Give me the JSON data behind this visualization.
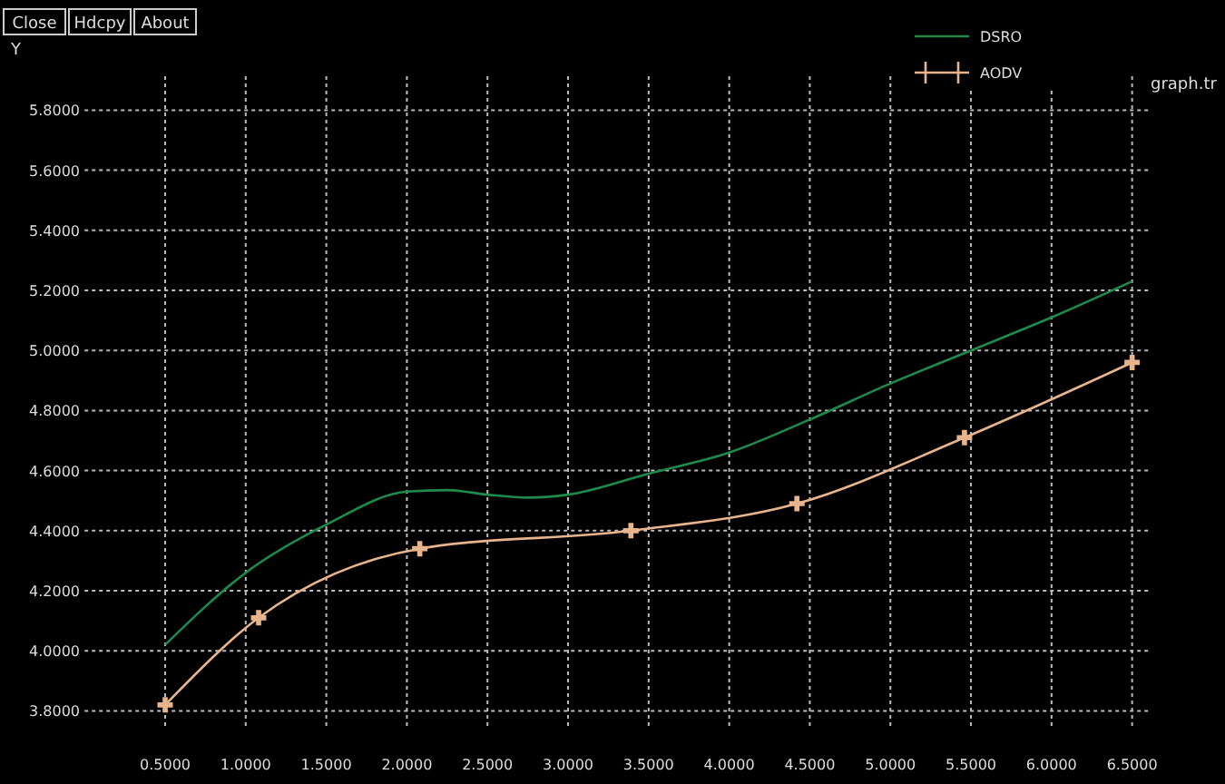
{
  "chart_data": {
    "type": "line",
    "xlabel": "graph.tr",
    "ylabel": "Y",
    "annotations": [
      "Close",
      "Hdcpy",
      "About"
    ],
    "xlim": [
      0,
      6.6
    ],
    "ylim": [
      3.75,
      5.925
    ],
    "xticks": [
      {
        "value": 0.5,
        "label": "0.5000"
      },
      {
        "value": 1,
        "label": "1.0000"
      },
      {
        "value": 1.5,
        "label": "1.5000"
      },
      {
        "value": 2,
        "label": "2.0000"
      },
      {
        "value": 2.5,
        "label": "2.5000"
      },
      {
        "value": 3,
        "label": "3.0000"
      },
      {
        "value": 3.5,
        "label": "3.5000"
      },
      {
        "value": 4,
        "label": "4.0000"
      },
      {
        "value": 4.5,
        "label": "4.5000"
      },
      {
        "value": 5,
        "label": "5.0000"
      },
      {
        "value": 5.5,
        "label": "5.5000"
      },
      {
        "value": 6,
        "label": "6.0000"
      },
      {
        "value": 6.5,
        "label": "6.5000"
      }
    ],
    "yticks": [
      {
        "value": 3.8,
        "label": "3.8000"
      },
      {
        "value": 4,
        "label": "4.0000"
      },
      {
        "value": 4.2,
        "label": "4.2000"
      },
      {
        "value": 4.4,
        "label": "4.4000"
      },
      {
        "value": 4.6,
        "label": "4.6000"
      },
      {
        "value": 4.8,
        "label": "4.8000"
      },
      {
        "value": 5,
        "label": "5.0000"
      },
      {
        "value": 5.2,
        "label": "5.2000"
      },
      {
        "value": 5.4,
        "label": "5.4000"
      },
      {
        "value": 5.6,
        "label": "5.6000"
      },
      {
        "value": 5.8,
        "label": "5.8000"
      }
    ],
    "grid": true,
    "legend": "top right",
    "series": [
      {
        "name": "DSRO",
        "color": "#1e8a4c",
        "marker": "none",
        "x": [
          0.5,
          1,
          1.5,
          2,
          2.25,
          2.5,
          2.75,
          3,
          3.5,
          4,
          4.5,
          5,
          5.5,
          6,
          6.5
        ],
        "values": [
          4.02,
          4.26,
          4.42,
          4.53,
          4.535,
          4.52,
          4.51,
          4.52,
          4.59,
          4.66,
          4.77,
          4.89,
          5.0,
          5.11,
          5.23
        ]
      },
      {
        "name": "AODV",
        "color": "#e8b48c",
        "marker": "cross",
        "x": [
          0.5,
          1.08,
          2.08,
          3.39,
          4.42,
          5.46,
          6.5
        ],
        "values": [
          3.82,
          4.11,
          4.34,
          4.4,
          4.49,
          4.71,
          4.96
        ]
      }
    ]
  }
}
